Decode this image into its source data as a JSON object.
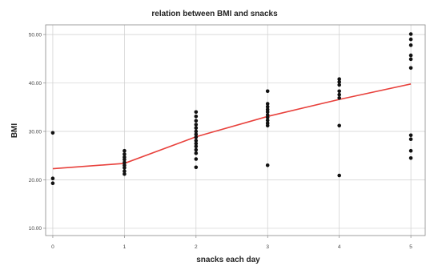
{
  "chart_data": {
    "type": "scatter",
    "title": "relation between BMI and snacks",
    "xlabel": "snacks each day",
    "ylabel": "BMI",
    "x_ticks": [
      "0",
      "1",
      "2",
      "3",
      "4",
      "5"
    ],
    "y_ticks": [
      "10.00",
      "20.00",
      "30.00",
      "40.00",
      "50.00"
    ],
    "xlim": [
      -0.1,
      5.2
    ],
    "ylim": [
      8.5,
      52
    ],
    "grid": true,
    "colors": {
      "points": "#111111",
      "fit_line": "#e8413c",
      "grid": "#cfcfcf",
      "frame": "#888888"
    },
    "points": [
      {
        "x": 0,
        "y": 29.7
      },
      {
        "x": 0,
        "y": 20.3
      },
      {
        "x": 0,
        "y": 19.3
      },
      {
        "x": 1,
        "y": 26.0
      },
      {
        "x": 1,
        "y": 25.3
      },
      {
        "x": 1,
        "y": 24.7
      },
      {
        "x": 1,
        "y": 24.2
      },
      {
        "x": 1,
        "y": 23.6
      },
      {
        "x": 1,
        "y": 23.0
      },
      {
        "x": 1,
        "y": 22.5
      },
      {
        "x": 1,
        "y": 21.8
      },
      {
        "x": 1,
        "y": 21.2
      },
      {
        "x": 2,
        "y": 34.0
      },
      {
        "x": 2,
        "y": 33.1
      },
      {
        "x": 2,
        "y": 32.2
      },
      {
        "x": 2,
        "y": 31.4
      },
      {
        "x": 2,
        "y": 30.7
      },
      {
        "x": 2,
        "y": 30.0
      },
      {
        "x": 2,
        "y": 29.4
      },
      {
        "x": 2,
        "y": 28.8
      },
      {
        "x": 2,
        "y": 28.1
      },
      {
        "x": 2,
        "y": 27.5
      },
      {
        "x": 2,
        "y": 26.9
      },
      {
        "x": 2,
        "y": 26.2
      },
      {
        "x": 2,
        "y": 25.5
      },
      {
        "x": 2,
        "y": 24.3
      },
      {
        "x": 2,
        "y": 22.6
      },
      {
        "x": 3,
        "y": 38.3
      },
      {
        "x": 3,
        "y": 35.7
      },
      {
        "x": 3,
        "y": 35.1
      },
      {
        "x": 3,
        "y": 34.5
      },
      {
        "x": 3,
        "y": 34.0
      },
      {
        "x": 3,
        "y": 33.4
      },
      {
        "x": 3,
        "y": 32.9
      },
      {
        "x": 3,
        "y": 32.3
      },
      {
        "x": 3,
        "y": 31.7
      },
      {
        "x": 3,
        "y": 31.2
      },
      {
        "x": 3,
        "y": 23.0
      },
      {
        "x": 4,
        "y": 40.8
      },
      {
        "x": 4,
        "y": 40.2
      },
      {
        "x": 4,
        "y": 39.6
      },
      {
        "x": 4,
        "y": 38.3
      },
      {
        "x": 4,
        "y": 37.6
      },
      {
        "x": 4,
        "y": 36.9
      },
      {
        "x": 4,
        "y": 31.2
      },
      {
        "x": 4,
        "y": 20.9
      },
      {
        "x": 5,
        "y": 50.1
      },
      {
        "x": 5,
        "y": 49.0
      },
      {
        "x": 5,
        "y": 47.8
      },
      {
        "x": 5,
        "y": 45.7
      },
      {
        "x": 5,
        "y": 44.9
      },
      {
        "x": 5,
        "y": 43.1
      },
      {
        "x": 5,
        "y": 29.2
      },
      {
        "x": 5,
        "y": 28.4
      },
      {
        "x": 5,
        "y": 26.0
      },
      {
        "x": 5,
        "y": 24.5
      }
    ],
    "fit_line": [
      {
        "x": 0,
        "y": 22.3
      },
      {
        "x": 1,
        "y": 23.4
      },
      {
        "x": 2,
        "y": 28.9
      },
      {
        "x": 3,
        "y": 33.1
      },
      {
        "x": 4,
        "y": 36.6
      },
      {
        "x": 5,
        "y": 39.8
      }
    ]
  }
}
